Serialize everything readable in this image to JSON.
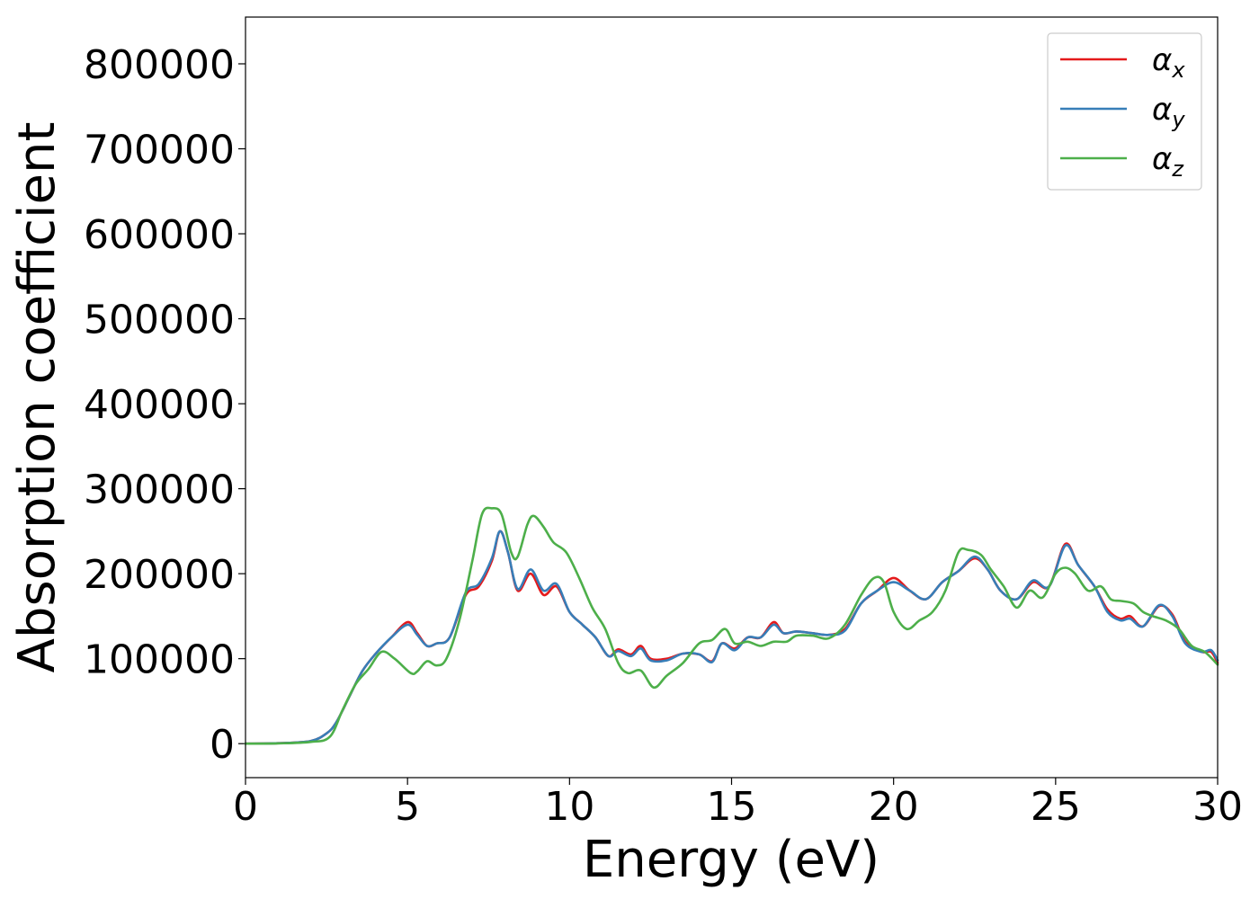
{
  "chart_data": {
    "type": "line",
    "xlabel": "Energy (eV)",
    "ylabel": "Absorption coefficient",
    "xlim": [
      0,
      30
    ],
    "ylim": [
      -40000,
      855000
    ],
    "x_ticks": [
      "0",
      "5",
      "10",
      "15",
      "20",
      "25",
      "30"
    ],
    "y_ticks": [
      "0",
      "100000",
      "200000",
      "300000",
      "400000",
      "500000",
      "600000",
      "700000",
      "800000"
    ],
    "grid": false,
    "legend_position": "top-right",
    "series": [
      {
        "name": "α",
        "subscript": "x",
        "color": "#e41a1c",
        "points": [
          [
            0,
            0
          ],
          [
            1,
            500
          ],
          [
            2,
            3000
          ],
          [
            2.5,
            12000
          ],
          [
            2.8,
            25000
          ],
          [
            3.2,
            55000
          ],
          [
            3.6,
            85000
          ],
          [
            4.0,
            105000
          ],
          [
            4.5,
            125000
          ],
          [
            5.0,
            143000
          ],
          [
            5.3,
            130000
          ],
          [
            5.6,
            115000
          ],
          [
            5.9,
            118000
          ],
          [
            6.3,
            125000
          ],
          [
            6.8,
            175000
          ],
          [
            7.2,
            185000
          ],
          [
            7.6,
            215000
          ],
          [
            7.85,
            250000
          ],
          [
            8.1,
            225000
          ],
          [
            8.4,
            180000
          ],
          [
            8.8,
            200000
          ],
          [
            9.2,
            175000
          ],
          [
            9.6,
            185000
          ],
          [
            10.0,
            155000
          ],
          [
            10.4,
            140000
          ],
          [
            10.8,
            125000
          ],
          [
            11.2,
            103000
          ],
          [
            11.5,
            111000
          ],
          [
            11.9,
            105000
          ],
          [
            12.2,
            115000
          ],
          [
            12.5,
            100000
          ],
          [
            13.0,
            100000
          ],
          [
            13.5,
            106000
          ],
          [
            14.0,
            105000
          ],
          [
            14.4,
            97000
          ],
          [
            14.7,
            118000
          ],
          [
            15.1,
            112000
          ],
          [
            15.5,
            125000
          ],
          [
            15.9,
            125000
          ],
          [
            16.3,
            143000
          ],
          [
            16.6,
            130000
          ],
          [
            17.0,
            132000
          ],
          [
            17.5,
            130000
          ],
          [
            18.0,
            128000
          ],
          [
            18.5,
            135000
          ],
          [
            19.0,
            165000
          ],
          [
            19.5,
            180000
          ],
          [
            20.0,
            195000
          ],
          [
            20.5,
            180000
          ],
          [
            21.0,
            170000
          ],
          [
            21.5,
            190000
          ],
          [
            22.0,
            203000
          ],
          [
            22.5,
            218000
          ],
          [
            22.9,
            205000
          ],
          [
            23.3,
            180000
          ],
          [
            23.8,
            170000
          ],
          [
            24.3,
            190000
          ],
          [
            24.8,
            185000
          ],
          [
            25.3,
            235000
          ],
          [
            25.7,
            210000
          ],
          [
            26.2,
            185000
          ],
          [
            26.6,
            158000
          ],
          [
            27.0,
            147000
          ],
          [
            27.3,
            150000
          ],
          [
            27.7,
            138000
          ],
          [
            28.2,
            162000
          ],
          [
            28.6,
            152000
          ],
          [
            29.0,
            120000
          ],
          [
            29.5,
            108000
          ],
          [
            29.8,
            108000
          ],
          [
            30.0,
            95000
          ]
        ]
      },
      {
        "name": "α",
        "subscript": "y",
        "color": "#377eb8",
        "points": [
          [
            0,
            0
          ],
          [
            1,
            500
          ],
          [
            2,
            3000
          ],
          [
            2.5,
            12000
          ],
          [
            2.8,
            25000
          ],
          [
            3.2,
            55000
          ],
          [
            3.6,
            85000
          ],
          [
            4.0,
            105000
          ],
          [
            4.5,
            125000
          ],
          [
            5.0,
            140000
          ],
          [
            5.3,
            128000
          ],
          [
            5.6,
            115000
          ],
          [
            5.9,
            118000
          ],
          [
            6.3,
            125000
          ],
          [
            6.8,
            178000
          ],
          [
            7.2,
            188000
          ],
          [
            7.6,
            218000
          ],
          [
            7.85,
            250000
          ],
          [
            8.1,
            225000
          ],
          [
            8.4,
            182000
          ],
          [
            8.8,
            205000
          ],
          [
            9.2,
            180000
          ],
          [
            9.6,
            188000
          ],
          [
            10.0,
            155000
          ],
          [
            10.4,
            140000
          ],
          [
            10.8,
            125000
          ],
          [
            11.2,
            103000
          ],
          [
            11.5,
            109000
          ],
          [
            11.9,
            103000
          ],
          [
            12.2,
            112000
          ],
          [
            12.5,
            98000
          ],
          [
            13.0,
            98000
          ],
          [
            13.5,
            106000
          ],
          [
            14.0,
            105000
          ],
          [
            14.4,
            96000
          ],
          [
            14.7,
            118000
          ],
          [
            15.1,
            110000
          ],
          [
            15.5,
            125000
          ],
          [
            15.9,
            125000
          ],
          [
            16.3,
            140000
          ],
          [
            16.6,
            130000
          ],
          [
            17.0,
            132000
          ],
          [
            17.5,
            130000
          ],
          [
            18.0,
            128000
          ],
          [
            18.5,
            133000
          ],
          [
            19.0,
            165000
          ],
          [
            19.5,
            180000
          ],
          [
            20.0,
            190000
          ],
          [
            20.5,
            180000
          ],
          [
            21.0,
            170000
          ],
          [
            21.5,
            190000
          ],
          [
            22.0,
            203000
          ],
          [
            22.5,
            220000
          ],
          [
            22.9,
            205000
          ],
          [
            23.3,
            180000
          ],
          [
            23.8,
            170000
          ],
          [
            24.3,
            192000
          ],
          [
            24.8,
            185000
          ],
          [
            25.3,
            233000
          ],
          [
            25.7,
            210000
          ],
          [
            26.2,
            185000
          ],
          [
            26.6,
            155000
          ],
          [
            27.0,
            145000
          ],
          [
            27.3,
            147000
          ],
          [
            27.7,
            138000
          ],
          [
            28.2,
            163000
          ],
          [
            28.6,
            150000
          ],
          [
            29.0,
            118000
          ],
          [
            29.5,
            108000
          ],
          [
            29.8,
            110000
          ],
          [
            30.0,
            98000
          ]
        ]
      },
      {
        "name": "α",
        "subscript": "z",
        "color": "#4daf4a",
        "points": [
          [
            0,
            0
          ],
          [
            1,
            300
          ],
          [
            2,
            2000
          ],
          [
            2.6,
            8000
          ],
          [
            3.0,
            40000
          ],
          [
            3.4,
            70000
          ],
          [
            3.8,
            88000
          ],
          [
            4.2,
            108000
          ],
          [
            4.6,
            100000
          ],
          [
            5.1,
            83000
          ],
          [
            5.3,
            85000
          ],
          [
            5.6,
            97000
          ],
          [
            5.9,
            92000
          ],
          [
            6.2,
            100000
          ],
          [
            6.6,
            145000
          ],
          [
            7.0,
            215000
          ],
          [
            7.3,
            270000
          ],
          [
            7.6,
            277000
          ],
          [
            7.9,
            270000
          ],
          [
            8.2,
            225000
          ],
          [
            8.4,
            220000
          ],
          [
            8.7,
            258000
          ],
          [
            8.9,
            268000
          ],
          [
            9.2,
            255000
          ],
          [
            9.5,
            237000
          ],
          [
            9.9,
            225000
          ],
          [
            10.3,
            195000
          ],
          [
            10.7,
            160000
          ],
          [
            11.1,
            135000
          ],
          [
            11.5,
            95000
          ],
          [
            11.8,
            83000
          ],
          [
            12.2,
            86000
          ],
          [
            12.6,
            66000
          ],
          [
            13.0,
            80000
          ],
          [
            13.5,
            95000
          ],
          [
            14.0,
            118000
          ],
          [
            14.4,
            122000
          ],
          [
            14.8,
            135000
          ],
          [
            15.1,
            118000
          ],
          [
            15.5,
            120000
          ],
          [
            15.9,
            115000
          ],
          [
            16.3,
            120000
          ],
          [
            16.7,
            120000
          ],
          [
            17.0,
            127000
          ],
          [
            17.5,
            127000
          ],
          [
            18.0,
            124000
          ],
          [
            18.5,
            140000
          ],
          [
            19.0,
            175000
          ],
          [
            19.4,
            195000
          ],
          [
            19.7,
            190000
          ],
          [
            20.0,
            155000
          ],
          [
            20.4,
            135000
          ],
          [
            20.8,
            145000
          ],
          [
            21.2,
            155000
          ],
          [
            21.6,
            180000
          ],
          [
            22.0,
            225000
          ],
          [
            22.3,
            228000
          ],
          [
            22.7,
            222000
          ],
          [
            23.0,
            205000
          ],
          [
            23.4,
            185000
          ],
          [
            23.8,
            160000
          ],
          [
            24.2,
            180000
          ],
          [
            24.6,
            172000
          ],
          [
            25.0,
            200000
          ],
          [
            25.3,
            207000
          ],
          [
            25.6,
            200000
          ],
          [
            26.0,
            180000
          ],
          [
            26.4,
            185000
          ],
          [
            26.7,
            170000
          ],
          [
            27.0,
            168000
          ],
          [
            27.4,
            165000
          ],
          [
            27.7,
            155000
          ],
          [
            28.0,
            150000
          ],
          [
            28.4,
            145000
          ],
          [
            28.8,
            135000
          ],
          [
            29.2,
            115000
          ],
          [
            29.6,
            108000
          ],
          [
            30.0,
            93000
          ]
        ]
      }
    ]
  }
}
